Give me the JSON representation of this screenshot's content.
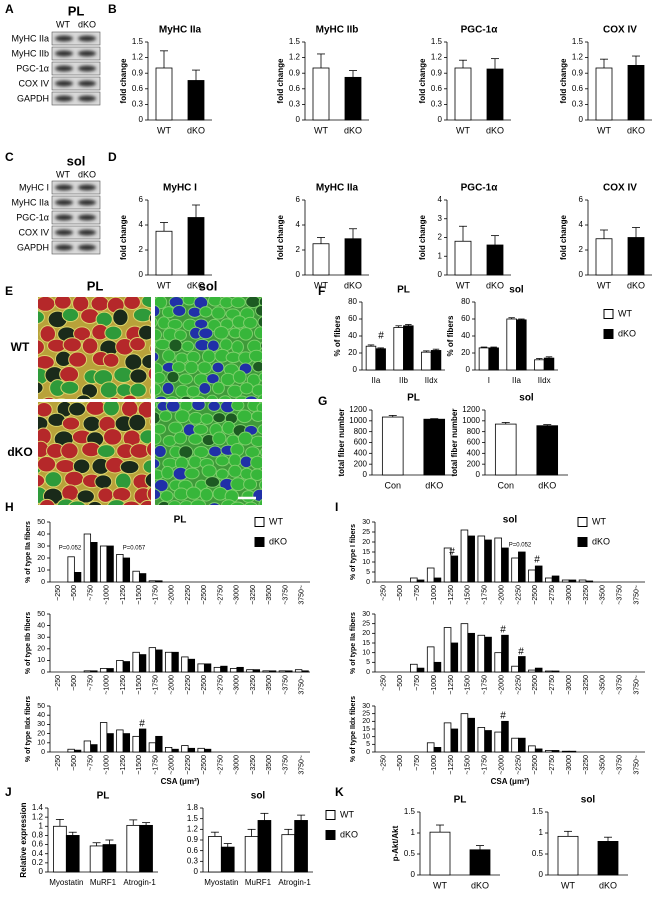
{
  "panel_labels": [
    "A",
    "B",
    "C",
    "D",
    "E",
    "F",
    "G",
    "H",
    "I",
    "J",
    "K"
  ],
  "blots": [
    {
      "title": "PL",
      "lanes": [
        "WT",
        "dKO"
      ],
      "rows": [
        "MyHC IIa",
        "MyHC IIb",
        "PGC-1α",
        "COX IV",
        "GAPDH"
      ]
    },
    {
      "title": "sol",
      "lanes": [
        "WT",
        "dKO"
      ],
      "rows": [
        "MyHC I",
        "MyHC IIa",
        "PGC-1α",
        "COX IV",
        "GAPDH"
      ]
    }
  ],
  "micrographs": {
    "columns": [
      "PL",
      "sol"
    ],
    "rows": [
      "WT",
      "dKO"
    ]
  },
  "chart_data": [
    {
      "type": "bar",
      "title": "MyHC IIa",
      "ylabel": "fold change",
      "categories": [
        "WT",
        "dKO"
      ],
      "values": [
        1,
        0.76
      ],
      "errors": [
        0.33,
        0.2
      ],
      "colors": [
        "#ffffff",
        "#000000"
      ],
      "ylim": [
        0,
        1.5
      ],
      "yticks": [
        0,
        0.3,
        0.6,
        0.9,
        1.2,
        1.5
      ]
    },
    {
      "type": "bar",
      "title": "MyHC IIb",
      "ylabel": "fold change",
      "categories": [
        "WT",
        "dKO"
      ],
      "values": [
        1,
        0.82
      ],
      "errors": [
        0.27,
        0.13
      ],
      "colors": [
        "#ffffff",
        "#000000"
      ],
      "ylim": [
        0,
        1.5
      ],
      "yticks": [
        0,
        0.3,
        0.6,
        0.9,
        1.2,
        1.5
      ]
    },
    {
      "type": "bar",
      "title": "PGC-1α",
      "ylabel": "fold change",
      "categories": [
        "WT",
        "dKO"
      ],
      "values": [
        1,
        0.98
      ],
      "errors": [
        0.15,
        0.2
      ],
      "colors": [
        "#ffffff",
        "#000000"
      ],
      "ylim": [
        0,
        1.5
      ],
      "yticks": [
        0,
        0.3,
        0.6,
        0.9,
        1.2,
        1.5
      ]
    },
    {
      "type": "bar",
      "title": "COX IV",
      "ylabel": "fold change",
      "categories": [
        "WT",
        "dKO"
      ],
      "values": [
        1,
        1.05
      ],
      "errors": [
        0.17,
        0.18
      ],
      "colors": [
        "#ffffff",
        "#000000"
      ],
      "ylim": [
        0,
        1.5
      ],
      "yticks": [
        0,
        0.3,
        0.6,
        0.9,
        1.2,
        1.5
      ]
    },
    {
      "type": "bar",
      "title": "MyHC I",
      "ylabel": "fold change",
      "categories": [
        "WT",
        "dKO"
      ],
      "values": [
        3.5,
        4.6
      ],
      "errors": [
        0.7,
        1
      ],
      "colors": [
        "#ffffff",
        "#000000"
      ],
      "ylim": [
        0,
        6
      ],
      "yticks": [
        0,
        2,
        4,
        6
      ]
    },
    {
      "type": "bar",
      "title": "MyHC IIa",
      "ylabel": "fold change",
      "categories": [
        "WT",
        "dKO"
      ],
      "values": [
        2.5,
        2.9
      ],
      "errors": [
        0.5,
        0.8
      ],
      "colors": [
        "#ffffff",
        "#000000"
      ],
      "ylim": [
        0,
        6
      ],
      "yticks": [
        0,
        2,
        4,
        6
      ]
    },
    {
      "type": "bar",
      "title": "PGC-1α",
      "ylabel": "fold change",
      "categories": [
        "WT",
        "dKO"
      ],
      "values": [
        1.8,
        1.6
      ],
      "errors": [
        0.8,
        0.5
      ],
      "colors": [
        "#ffffff",
        "#000000"
      ],
      "ylim": [
        0,
        4
      ],
      "yticks": [
        0,
        1,
        2,
        3,
        4
      ]
    },
    {
      "type": "bar",
      "title": "COX IV",
      "ylabel": "fold change",
      "categories": [
        "WT",
        "dKO"
      ],
      "values": [
        2.9,
        3
      ],
      "errors": [
        0.7,
        0.8
      ],
      "colors": [
        "#ffffff",
        "#000000"
      ],
      "ylim": [
        0,
        6
      ],
      "yticks": [
        0,
        2,
        4,
        6
      ]
    },
    {
      "type": "bar",
      "title": "PL",
      "ylabel": "% of fibers",
      "categories": [
        "IIa",
        "IIb",
        "IIdx"
      ],
      "series": [
        {
          "color": "#ffffff",
          "values": [
            28,
            50,
            21
          ],
          "errors": [
            1.5,
            2,
            1.5
          ]
        },
        {
          "color": "#000000",
          "values": [
            25,
            52,
            23
          ],
          "errors": [
            1,
            1.5,
            1.5
          ]
        }
      ],
      "ylim": [
        0,
        80
      ],
      "yticks": [
        0,
        20,
        40,
        60,
        80
      ],
      "annotations": [
        "#"
      ]
    },
    {
      "type": "bar",
      "title": "sol",
      "ylabel": "% of fibers",
      "categories": [
        "I",
        "IIa",
        "IIdx"
      ],
      "series": [
        {
          "name": "WT",
          "color": "#ffffff",
          "values": [
            26,
            60,
            12
          ],
          "errors": [
            1,
            1.5,
            1.5
          ]
        },
        {
          "name": "dKO",
          "color": "#000000",
          "values": [
            26,
            59,
            14
          ],
          "errors": [
            1,
            1,
            1.5
          ]
        }
      ],
      "ylim": [
        0,
        80
      ],
      "yticks": [
        0,
        20,
        40,
        60,
        80
      ],
      "legend": "upper right"
    },
    {
      "type": "bar",
      "title": "PL",
      "ylabel": "total fiber number",
      "categories": [
        "Con",
        "dKO"
      ],
      "values": [
        1070,
        1030
      ],
      "errors": [
        30,
        10
      ],
      "colors": [
        "#ffffff",
        "#000000"
      ],
      "ylim": [
        0,
        1200
      ],
      "yticks": [
        0,
        200,
        400,
        600,
        800,
        1000,
        1200
      ]
    },
    {
      "type": "bar",
      "title": "sol",
      "ylabel": "total fiber number",
      "categories": [
        "Con",
        "dKO"
      ],
      "values": [
        940,
        910
      ],
      "errors": [
        30,
        20
      ],
      "colors": [
        "#ffffff",
        "#000000"
      ],
      "ylim": [
        0,
        1200
      ],
      "yticks": [
        0,
        200,
        400,
        600,
        800,
        1000,
        1200
      ]
    },
    {
      "type": "bar",
      "title": "PL",
      "ylabel": "% of type IIa fibers",
      "categories": [
        "~250",
        "~500",
        "~750",
        "~1000",
        "~1250",
        "~1500",
        "~1750",
        "~2000",
        "~2250",
        "~2500",
        "~2750",
        "~3000",
        "~3250",
        "~3500",
        "~3750",
        "3750~"
      ],
      "series": [
        {
          "name": "WT",
          "color": "#ffffff",
          "values": [
            0,
            21,
            40,
            30,
            23,
            9,
            1,
            0,
            0,
            0,
            0,
            0,
            0,
            0,
            0,
            0
          ]
        },
        {
          "name": "dKO",
          "color": "#000000",
          "values": [
            0,
            8,
            33,
            30,
            20,
            7,
            1,
            0,
            0,
            0,
            0,
            0,
            0,
            0,
            0,
            0
          ]
        }
      ],
      "ylim": [
        0,
        50
      ],
      "yticks": [
        0,
        10,
        20,
        30,
        40,
        50
      ],
      "legend": "upper right",
      "annotations": [
        "P=0.052",
        "P=0.057"
      ]
    },
    {
      "type": "bar",
      "ylabel": "% of type IIb fibers",
      "categories": [
        "~250",
        "~500",
        "~750",
        "~1000",
        "~1250",
        "~1500",
        "~1750",
        "~2000",
        "~2250",
        "~2500",
        "~2750",
        "~3000",
        "~3250",
        "~3500",
        "~3750",
        "3750~"
      ],
      "series": [
        {
          "color": "#ffffff",
          "values": [
            0,
            0,
            1,
            3,
            10,
            17,
            21,
            17,
            13,
            7,
            4,
            3,
            2,
            1,
            1,
            2
          ]
        },
        {
          "color": "#000000",
          "values": [
            0,
            0,
            1,
            3,
            9,
            15,
            19,
            17,
            11,
            7,
            5,
            4,
            2,
            1,
            1,
            1
          ]
        }
      ],
      "ylim": [
        0,
        50
      ],
      "yticks": [
        0,
        10,
        20,
        30,
        40,
        50
      ]
    },
    {
      "type": "bar",
      "ylabel": "% of type IIdx fibers",
      "xlabel": "CSA (μm²)",
      "categories": [
        "~250",
        "~500",
        "~750",
        "~1000",
        "~1250",
        "~1500",
        "~1750",
        "~2000",
        "~2250",
        "~2500",
        "~2750",
        "~3000",
        "~3250",
        "~3500",
        "~3750",
        "3750~"
      ],
      "series": [
        {
          "color": "#ffffff",
          "values": [
            0,
            3,
            12,
            32,
            24,
            17,
            10,
            5,
            7,
            4,
            0,
            0,
            0,
            0,
            0,
            0
          ]
        },
        {
          "color": "#000000",
          "values": [
            0,
            2,
            8,
            20,
            20,
            25,
            17,
            3,
            4,
            3,
            0,
            0,
            0,
            0,
            0,
            0
          ]
        }
      ],
      "ylim": [
        0,
        50
      ],
      "yticks": [
        0,
        10,
        20,
        30,
        40,
        50
      ],
      "annotations": [
        "#"
      ]
    },
    {
      "type": "bar",
      "title": "sol",
      "ylabel": "% of type I fibers",
      "categories": [
        "~250",
        "~500",
        "~750",
        "~1000",
        "~1250",
        "~1500",
        "~1750",
        "~2000",
        "~2250",
        "~2500",
        "~2750",
        "~3000",
        "~3250",
        "~3500",
        "~3750",
        "3750~"
      ],
      "series": [
        {
          "name": "WT",
          "color": "#ffffff",
          "values": [
            0,
            0,
            2,
            7,
            17,
            26,
            23,
            22,
            12,
            6,
            2,
            1,
            1,
            0,
            0,
            0
          ]
        },
        {
          "name": "dKO",
          "color": "#000000",
          "values": [
            0,
            0,
            1,
            2,
            13,
            23,
            21,
            17,
            15,
            8,
            3,
            1,
            0.5,
            0,
            0,
            0
          ]
        }
      ],
      "ylim": [
        0,
        30
      ],
      "yticks": [
        0,
        5,
        10,
        15,
        20,
        25,
        30
      ],
      "legend": "upper right",
      "annotations": [
        "P=0.052",
        "#",
        "#"
      ]
    },
    {
      "type": "bar",
      "ylabel": "% of type IIa fibers",
      "categories": [
        "~250",
        "~500",
        "~750",
        "~1000",
        "~1250",
        "~1500",
        "~1750",
        "~2000",
        "~2250",
        "~2500",
        "~2750",
        "~3000",
        "~3250",
        "~3500",
        "~3750",
        "3750~"
      ],
      "series": [
        {
          "color": "#ffffff",
          "values": [
            0,
            0,
            4,
            13,
            23,
            25,
            19,
            10,
            3,
            1,
            0.5,
            0,
            0,
            0,
            0,
            0
          ]
        },
        {
          "color": "#000000",
          "values": [
            0,
            0,
            2,
            5,
            15,
            20,
            18,
            19,
            8,
            2,
            0.5,
            0,
            0,
            0,
            0,
            0
          ]
        }
      ],
      "ylim": [
        0,
        30
      ],
      "yticks": [
        0,
        5,
        10,
        15,
        20,
        25,
        30
      ],
      "annotations": [
        "#",
        "#"
      ]
    },
    {
      "type": "bar",
      "ylabel": "% of type IIdx fibers",
      "xlabel": "CSA (μm²)",
      "categories": [
        "~250",
        "~500",
        "~750",
        "~1000",
        "~1250",
        "~1500",
        "~1750",
        "~2000",
        "~2250",
        "~2500",
        "~2750",
        "~3000",
        "~3250",
        "~3500",
        "~3750",
        "3750~"
      ],
      "series": [
        {
          "color": "#ffffff",
          "values": [
            0,
            0,
            0,
            6,
            19,
            25,
            16,
            13,
            9,
            4,
            1,
            0.5,
            0,
            0,
            0,
            0
          ]
        },
        {
          "color": "#000000",
          "values": [
            0,
            0,
            0,
            3,
            15,
            22,
            14,
            20,
            9,
            2,
            1,
            0.5,
            0,
            0,
            0,
            0
          ]
        }
      ],
      "ylim": [
        0,
        30
      ],
      "yticks": [
        0,
        5,
        10,
        15,
        20,
        25,
        30
      ],
      "annotations": [
        "#"
      ]
    },
    {
      "type": "bar",
      "title": "PL",
      "ylabel": "Relative expression",
      "categories": [
        "Myostatin",
        "MuRF1",
        "Atrogin-1"
      ],
      "series": [
        {
          "color": "#ffffff",
          "values": [
            1,
            0.57,
            1.02
          ],
          "errors": [
            0.15,
            0.07,
            0.12
          ]
        },
        {
          "color": "#000000",
          "values": [
            0.8,
            0.6,
            1.02
          ],
          "errors": [
            0.07,
            0.1,
            0.06
          ]
        }
      ],
      "ylim": [
        0,
        1.4
      ],
      "yticks": [
        0,
        0.2,
        0.4,
        0.6,
        0.8,
        1,
        1.2,
        1.4
      ]
    },
    {
      "type": "bar",
      "title": "sol",
      "categories": [
        "Myostatin",
        "MuRF1",
        "Atrogin-1"
      ],
      "series": [
        {
          "name": "WT",
          "color": "#ffffff",
          "values": [
            1,
            1,
            1.05
          ],
          "errors": [
            0.12,
            0.2,
            0.15
          ]
        },
        {
          "name": "dKO",
          "color": "#000000",
          "values": [
            0.7,
            1.45,
            1.45
          ],
          "errors": [
            0.1,
            0.2,
            0.15
          ]
        }
      ],
      "ylim": [
        0,
        1.8
      ],
      "yticks": [
        0,
        0.3,
        0.6,
        0.9,
        1.2,
        1.5,
        1.8
      ],
      "legend": "upper right"
    },
    {
      "type": "bar",
      "title": "PL",
      "ylabel": "p-Akt/Akt",
      "categories": [
        "WT",
        "dKO"
      ],
      "values": [
        1.02,
        0.6
      ],
      "errors": [
        0.17,
        0.1
      ],
      "colors": [
        "#ffffff",
        "#000000"
      ],
      "ylim": [
        0,
        1.5
      ],
      "yticks": [
        0,
        0.5,
        1,
        1.5
      ]
    },
    {
      "type": "bar",
      "title": "sol",
      "categories": [
        "WT",
        "dKO"
      ],
      "values": [
        0.92,
        0.8
      ],
      "errors": [
        0.12,
        0.1
      ],
      "colors": [
        "#ffffff",
        "#000000"
      ],
      "ylim": [
        0,
        1.5
      ],
      "yticks": [
        0,
        0.5,
        1,
        1.5
      ]
    }
  ]
}
